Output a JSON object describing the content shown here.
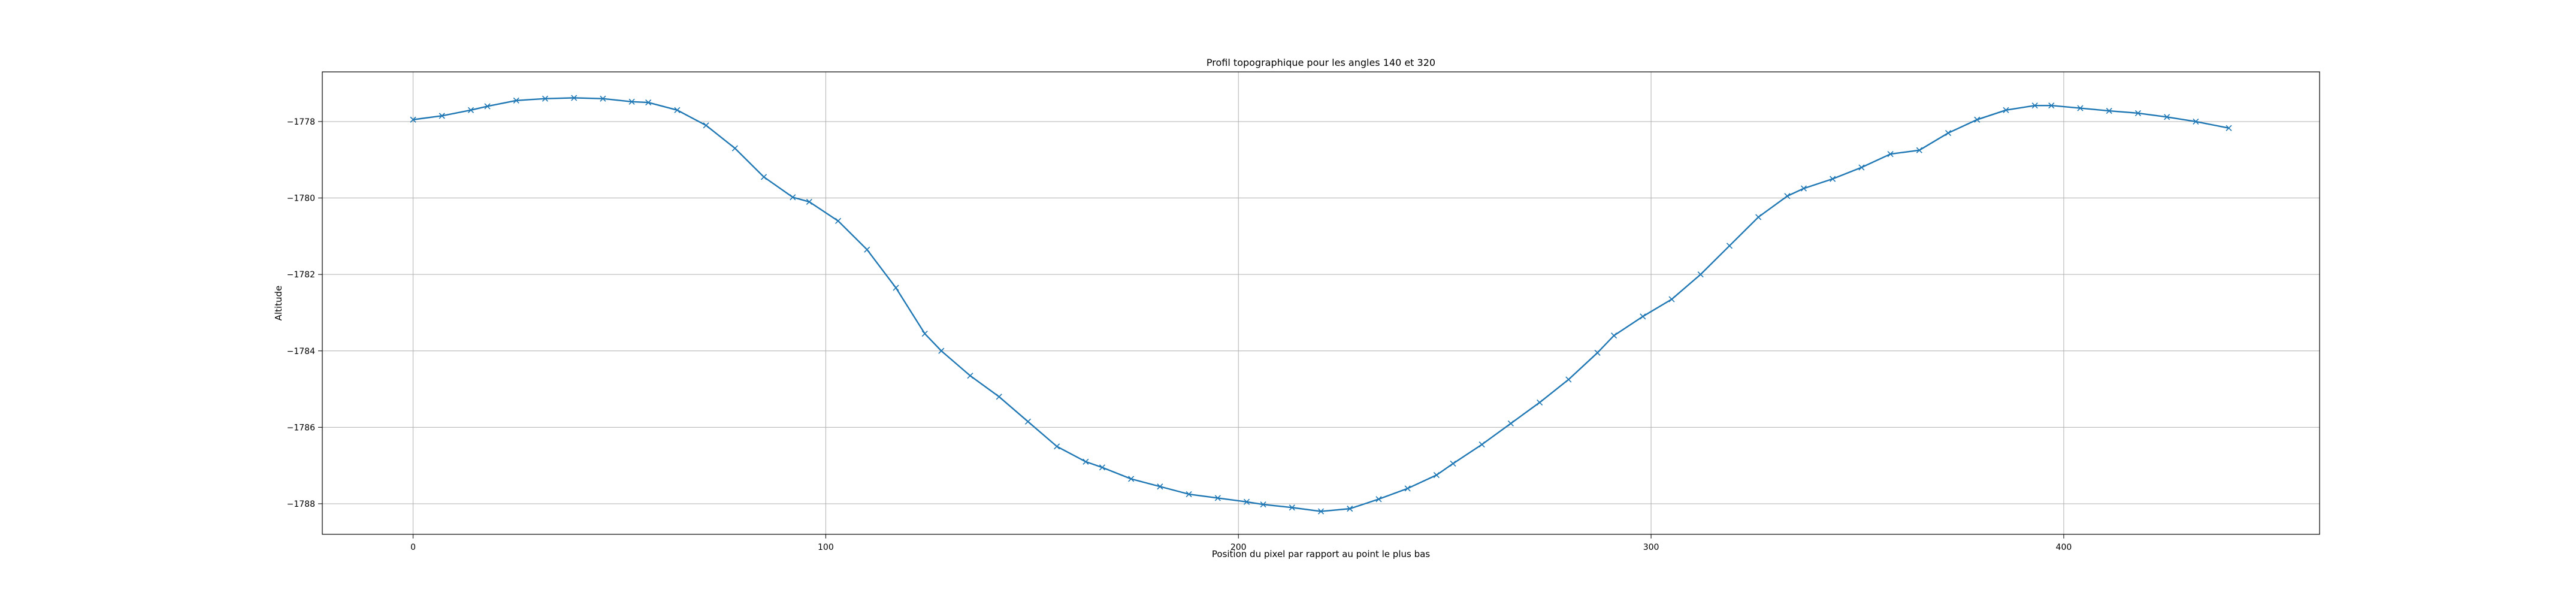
{
  "chart_data": {
    "type": "line",
    "title": "Profil topographique pour les angles 140 et 320",
    "xlabel": "Position du pixel par rapport au point le plus bas",
    "ylabel": "Altitude",
    "xlim": [
      -22,
      462
    ],
    "ylim": [
      -1788.8,
      -1776.7
    ],
    "x_ticks": [
      0,
      100,
      200,
      300,
      400
    ],
    "y_ticks": [
      -1778,
      -1780,
      -1782,
      -1784,
      -1786,
      -1788
    ],
    "grid": true,
    "legend": "none",
    "colors": {
      "series": "#1f77b4"
    },
    "series": [
      {
        "marker": "x",
        "x": [
          0,
          7,
          14,
          18,
          25,
          32,
          39,
          46,
          53,
          57,
          64,
          71,
          78,
          85,
          92,
          96,
          103,
          110,
          117,
          124,
          128,
          135,
          142,
          149,
          156,
          163,
          167,
          174,
          181,
          188,
          195,
          202,
          206,
          213,
          220,
          227,
          234,
          241,
          248,
          252,
          259,
          266,
          273,
          280,
          287,
          291,
          298,
          305,
          312,
          319,
          326,
          333,
          337,
          344,
          351,
          358,
          365,
          372,
          379,
          386,
          393,
          397,
          404,
          411,
          418,
          425,
          432,
          440
        ],
        "y": [
          -1777.95,
          -1777.85,
          -1777.7,
          -1777.6,
          -1777.45,
          -1777.4,
          -1777.38,
          -1777.4,
          -1777.48,
          -1777.5,
          -1777.7,
          -1778.1,
          -1778.7,
          -1779.45,
          -1779.98,
          -1780.1,
          -1780.6,
          -1781.35,
          -1782.35,
          -1783.55,
          -1784.0,
          -1784.65,
          -1785.2,
          -1785.85,
          -1786.5,
          -1786.9,
          -1787.05,
          -1787.35,
          -1787.55,
          -1787.75,
          -1787.85,
          -1787.95,
          -1788.02,
          -1788.1,
          -1788.2,
          -1788.13,
          -1787.88,
          -1787.6,
          -1787.25,
          -1786.95,
          -1786.45,
          -1785.9,
          -1785.35,
          -1784.75,
          -1784.05,
          -1783.6,
          -1783.1,
          -1782.65,
          -1782.0,
          -1781.25,
          -1780.5,
          -1779.95,
          -1779.75,
          -1779.5,
          -1779.2,
          -1778.85,
          -1778.75,
          -1778.3,
          -1777.95,
          -1777.7,
          -1777.58,
          -1777.58,
          -1777.65,
          -1777.72,
          -1777.78,
          -1777.88,
          -1778.0,
          -1778.17
        ]
      }
    ]
  }
}
